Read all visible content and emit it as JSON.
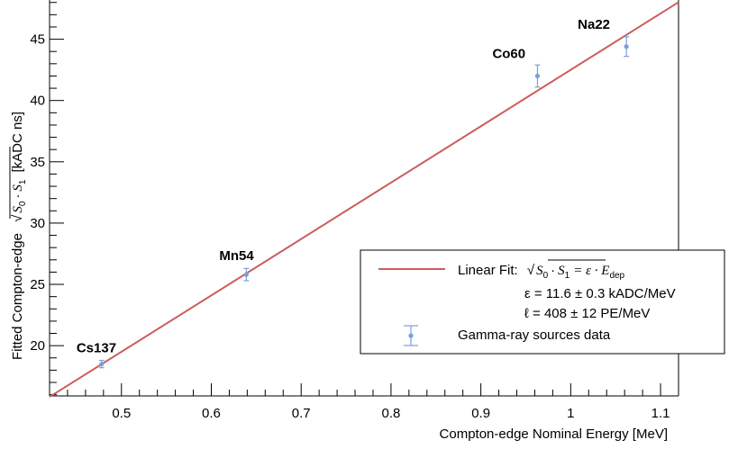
{
  "chart_data": {
    "type": "scatter",
    "xlabel": "Compton-edge Nominal Energy [MeV]",
    "ylabel": {
      "prefix": "Fitted Compton-edge",
      "expr_s0": "S",
      "expr_s0_sub": "0",
      "expr_dot": "·",
      "expr_s1": "S",
      "expr_s1_sub": "1",
      "unit": "[kADC ns]"
    },
    "xlim": [
      0.42,
      1.12
    ],
    "ylim": [
      15.9,
      48.2
    ],
    "xticks": [
      0.5,
      0.6,
      0.7,
      0.8,
      0.9,
      1.0,
      1.1
    ],
    "xtick_labels": [
      "0.5",
      "0.6",
      "0.7",
      "0.8",
      "0.9",
      "1",
      "1.1"
    ],
    "yticks": [
      20,
      25,
      30,
      35,
      40,
      45
    ],
    "ytick_labels": [
      "20",
      "25",
      "30",
      "35",
      "40",
      "45"
    ],
    "points": [
      {
        "label": "Cs137",
        "x": 0.478,
        "y": 18.5,
        "err": 0.3
      },
      {
        "label": "Mn54",
        "x": 0.639,
        "y": 25.8,
        "err": 0.5
      },
      {
        "label": "Co60",
        "x": 0.963,
        "y": 42.0,
        "err": 0.9
      },
      {
        "label": "Na22",
        "x": 1.062,
        "y": 44.4,
        "err": 0.8
      }
    ],
    "fit": {
      "slope": 46.0,
      "intercept": -3.5
    },
    "colors": {
      "fit": "#cd5c5c",
      "data": "#7b9fdb"
    },
    "grid": false,
    "legend_position": "bottom-right",
    "legend": {
      "fit_label": "Linear Fit:",
      "fit_eq": {
        "lhs_s0": "S",
        "lhs_s0_sub": "0",
        "lhs_dot": "·",
        "lhs_s1": "S",
        "lhs_s1_sub": "1",
        "eq": "= ε · E",
        "eq_sub": "dep"
      },
      "eps_line": "ε = 11.6 ± 0.3 kADC/MeV",
      "ell_line": "ℓ = 408  ± 12 PE/MeV",
      "data_label": "Gamma-ray sources data"
    }
  }
}
